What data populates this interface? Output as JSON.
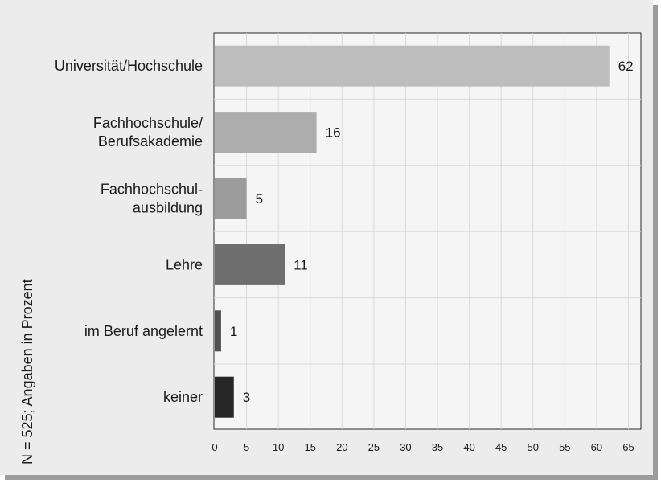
{
  "chart_data": {
    "type": "bar",
    "orientation": "horizontal",
    "categories": [
      [
        "Universität/Hochschule"
      ],
      [
        "Fachhochschule/",
        "Berufsakademie"
      ],
      [
        "Fachhochschul-",
        "ausbildung"
      ],
      [
        "Lehre"
      ],
      [
        "im Beruf angelernt"
      ],
      [
        "keiner"
      ]
    ],
    "values": [
      62,
      16,
      5,
      11,
      1,
      3
    ],
    "value_labels": [
      "62",
      "16",
      "5",
      "11",
      "1",
      "3"
    ],
    "bar_colors": [
      "#bdbdbd",
      "#adadad",
      "#9c9c9c",
      "#6e6e6e",
      "#505050",
      "#262626"
    ],
    "x_ticks": [
      0,
      5,
      10,
      15,
      20,
      25,
      30,
      35,
      40,
      45,
      50,
      55,
      60,
      65
    ],
    "xlim": [
      0,
      67
    ],
    "grid": true,
    "side_label": "N = 525; Angaben in Prozent"
  }
}
